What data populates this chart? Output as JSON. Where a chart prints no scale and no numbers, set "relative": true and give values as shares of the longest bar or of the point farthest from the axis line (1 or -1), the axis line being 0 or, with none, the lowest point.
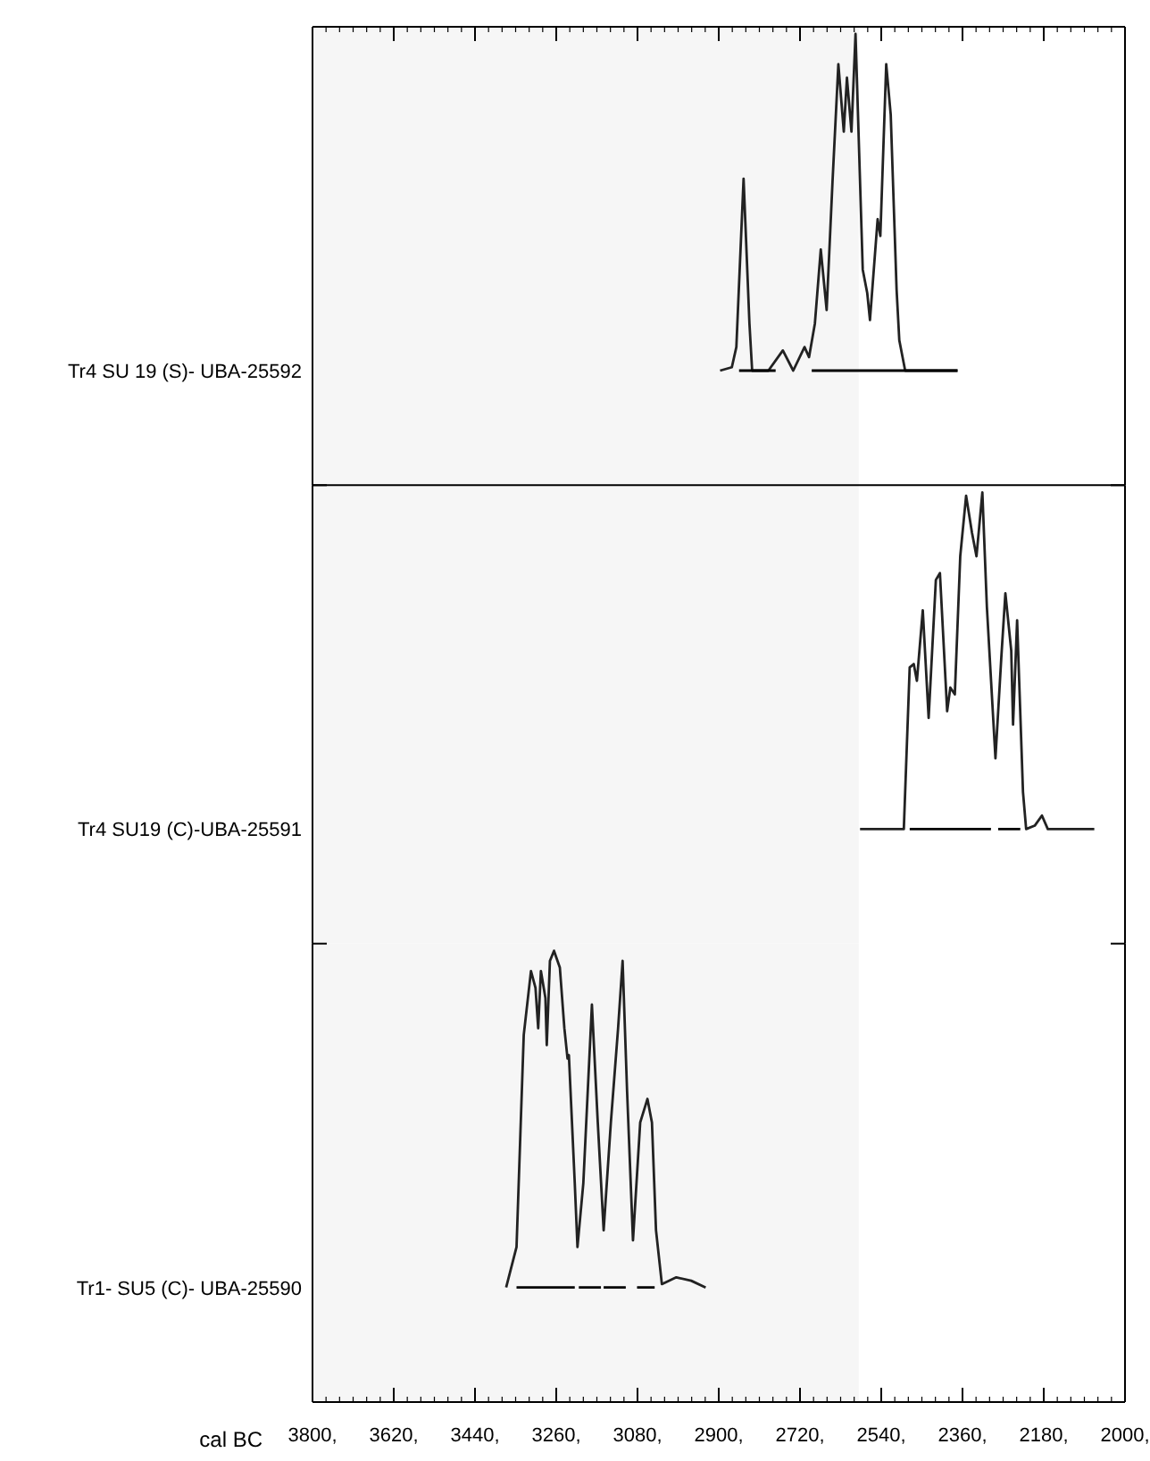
{
  "chart_data": [
    {
      "type": "line",
      "relative": true,
      "ylabel": "Tr4 SU 19 (S)- UBA-25592",
      "xlim": [
        3800,
        2000
      ],
      "tick_labels": false,
      "bands": [
        {
          "axis": "x",
          "from": 3800,
          "to": 2590,
          "color": "#f6f6f6"
        }
      ],
      "series": [
        {
          "color": "#222222",
          "x": [
            2897,
            2871,
            2861,
            2845,
            2832,
            2826,
            2790,
            2758,
            2735,
            2710,
            2700,
            2687,
            2674,
            2661,
            2648,
            2635,
            2623,
            2616,
            2606,
            2597,
            2581,
            2571,
            2565,
            2548,
            2542,
            2529,
            2519,
            2506,
            2500,
            2487,
            2371
          ],
          "values": [
            0,
            0.01,
            0.07,
            0.57,
            0.14,
            0,
            0,
            0.06,
            0,
            0.07,
            0.04,
            0.14,
            0.36,
            0.18,
            0.56,
            0.91,
            0.71,
            0.87,
            0.71,
            1,
            0.3,
            0.23,
            0.15,
            0.45,
            0.4,
            0.91,
            0.76,
            0.24,
            0.09,
            0,
            0
          ]
        },
        {
          "color": "#000000",
          "x": [
            2855,
            2774,
            2730,
            2694,
            2371
          ],
          "values": [
            0,
            0,
            null,
            0,
            0
          ]
        }
      ]
    },
    {
      "type": "line",
      "relative": true,
      "ylabel": "Tr4 SU19 (C)-UBA-25591",
      "xlim": [
        3800,
        2000
      ],
      "tick_labels": false,
      "bands": [
        {
          "axis": "x",
          "from": 3800,
          "to": 2590,
          "color": "#f6f6f6"
        }
      ],
      "series": [
        {
          "color": "#222222",
          "x": [
            2587,
            2490,
            2477,
            2468,
            2461,
            2448,
            2435,
            2419,
            2410,
            2394,
            2387,
            2377,
            2365,
            2352,
            2339,
            2329,
            2316,
            2306,
            2287,
            2274,
            2265,
            2252,
            2248,
            2239,
            2226,
            2219,
            2200,
            2184,
            2171,
            2068
          ],
          "values": [
            0,
            0,
            0.48,
            0.49,
            0.44,
            0.65,
            0.33,
            0.74,
            0.76,
            0.35,
            0.42,
            0.4,
            0.81,
            0.99,
            0.88,
            0.81,
            1,
            0.66,
            0.21,
            0.51,
            0.7,
            0.53,
            0.31,
            0.62,
            0.11,
            0,
            0.01,
            0.04,
            0,
            0
          ]
        },
        {
          "color": "#000000",
          "x": [
            2477,
            2297,
            2290,
            2281,
            2232
          ],
          "values": [
            0,
            0,
            null,
            0,
            0
          ]
        }
      ]
    },
    {
      "type": "line",
      "relative": true,
      "ylabel": "Tr1- SU5 (C)- UBA-25590",
      "xlabel": "cal BC",
      "xlim": [
        3800,
        2000
      ],
      "xticks": [
        {
          "value": 3800,
          "label": "3800,"
        },
        {
          "value": 3620,
          "label": "3620,"
        },
        {
          "value": 3440,
          "label": "3440,"
        },
        {
          "value": 3260,
          "label": "3260,"
        },
        {
          "value": 3080,
          "label": "3080,"
        },
        {
          "value": 2900,
          "label": "2900,"
        },
        {
          "value": 2720,
          "label": "2720,"
        },
        {
          "value": 2540,
          "label": "2540,"
        },
        {
          "value": 2360,
          "label": "2360,"
        },
        {
          "value": 2180,
          "label": "2180,"
        },
        {
          "value": 2000,
          "label": "2000,"
        }
      ],
      "tick_labels": "x",
      "bands": [
        {
          "axis": "x",
          "from": 3800,
          "to": 2590,
          "color": "#f6f6f6"
        }
      ],
      "series": [
        {
          "color": "#222222",
          "x": [
            3371,
            3348,
            3332,
            3316,
            3306,
            3300,
            3294,
            3284,
            3281,
            3274,
            3265,
            3252,
            3242,
            3235,
            3232,
            3219,
            3213,
            3200,
            3181,
            3168,
            3155,
            3139,
            3123,
            3113,
            3103,
            3090,
            3074,
            3058,
            3048,
            3039,
            3026,
            2994,
            2961,
            2929
          ],
          "values": [
            0,
            0.12,
            0.75,
            0.94,
            0.89,
            0.77,
            0.94,
            0.86,
            0.72,
            0.97,
            1,
            0.95,
            0.77,
            0.68,
            0.69,
            0.31,
            0.12,
            0.31,
            0.84,
            0.49,
            0.17,
            0.49,
            0.77,
            0.97,
            0.58,
            0.14,
            0.49,
            0.56,
            0.49,
            0.17,
            0.01,
            0.03,
            0.02,
            0
          ]
        },
        {
          "color": "#000000",
          "x": [
            3348,
            3219,
            3214,
            3210,
            3161,
            3158,
            3155,
            3106,
            3093,
            3081,
            3042
          ],
          "values": [
            0,
            0,
            null,
            0,
            0,
            null,
            0,
            0,
            null,
            0,
            0
          ]
        }
      ]
    }
  ]
}
